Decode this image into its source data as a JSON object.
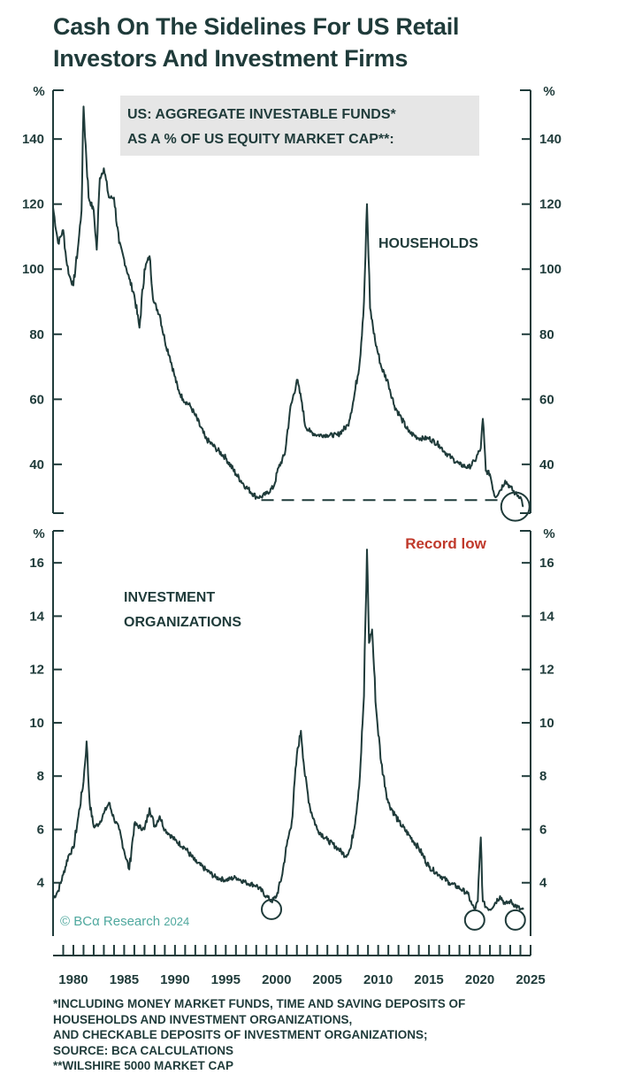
{
  "title": {
    "line1": "Cash On The Sidelines For US Retail",
    "line2": "Investors And Investment Firms"
  },
  "footnotes": [
    "*INCLUDING MONEY MARKET FUNDS, TIME AND SAVING DEPOSITS OF",
    "HOUSEHOLDS AND INVESTMENT ORGANIZATIONS,",
    "AND CHECKABLE DEPOSITS OF INVESTMENT ORGANIZATIONS;",
    "SOURCE: BCA CALCULATIONS",
    "**WILSHIRE 5000 MARKET CAP"
  ],
  "watermark": {
    "prefix": "© BC",
    "alpha": "α",
    "brand": " Research ",
    "year": "2024"
  },
  "colors": {
    "line": "#1f3b3a",
    "accent": "#c0392b",
    "label_box": "#e6e6e6",
    "watermark": "#4fa89e"
  },
  "chart_data": [
    {
      "type": "line",
      "box_label": [
        "US: AGGREGATE INVESTABLE FUNDS*",
        "AS A % OF US EQUITY MARKET CAP**:"
      ],
      "series_label": "HOUSEHOLDS",
      "annotation": "Record low",
      "unit_label": "%",
      "ylim": [
        25,
        155
      ],
      "yticks": [
        "140",
        "120",
        "100",
        "80",
        "60",
        "40"
      ],
      "ytick_values": [
        140,
        120,
        100,
        80,
        60,
        40
      ],
      "xlim": [
        1978,
        2025
      ],
      "reference_line_value": 29,
      "reference_line_x": [
        1998.5,
        2022
      ],
      "circle_markers": [
        {
          "x": 2023.5,
          "y": 27
        }
      ],
      "x": [
        1978,
        1978.5,
        1979,
        1979.3,
        1979.6,
        1980,
        1980.5,
        1980.8,
        1981,
        1981.5,
        1982,
        1982.3,
        1982.6,
        1983,
        1983.5,
        1984,
        1984.5,
        1985,
        1985.5,
        1986,
        1986.5,
        1987,
        1987.5,
        1987.9,
        1988.5,
        1989,
        1989.5,
        1989.9,
        1990.3,
        1990.8,
        1991.5,
        1992,
        1993,
        1994,
        1995,
        1996,
        1997,
        1998,
        1998.5,
        1999,
        1999.7,
        2000.2,
        2000.8,
        2001.3,
        2002,
        2002.5,
        2002.8,
        2003.3,
        2004,
        2005,
        2006,
        2007,
        2007.6,
        2008.2,
        2008.6,
        2008.9,
        2009.2,
        2009.7,
        2010.3,
        2011,
        2011.6,
        2012.3,
        2013,
        2014,
        2015,
        2016,
        2016.5,
        2017.2,
        2018,
        2018.9,
        2019.5,
        2020.1,
        2020.3,
        2020.6,
        2021,
        2021.5,
        2022,
        2022.5,
        2023,
        2023.5,
        2024,
        2024.3
      ],
      "y": [
        119,
        108,
        112,
        103,
        98,
        95,
        108,
        118,
        150,
        122,
        118,
        106,
        128,
        131,
        122,
        122,
        108,
        103,
        97,
        92,
        82,
        100,
        104,
        90,
        86,
        78,
        73,
        68,
        63,
        60,
        58,
        55,
        48,
        45,
        42,
        37,
        33,
        30,
        30,
        31,
        33,
        39,
        43,
        56,
        66,
        59,
        52,
        50,
        49,
        49,
        49,
        52,
        60,
        72,
        90,
        120,
        88,
        78,
        70,
        65,
        58,
        54,
        50,
        48,
        48,
        46,
        44,
        42,
        40,
        39,
        41,
        45,
        54,
        38,
        37,
        30,
        32,
        35,
        33,
        31,
        30,
        27
      ]
    },
    {
      "type": "line",
      "series_label": [
        "INVESTMENT",
        "ORGANIZATIONS"
      ],
      "unit_label": "%",
      "ylim": [
        2,
        17.2
      ],
      "yticks": [
        "16",
        "14",
        "12",
        "10",
        "8",
        "6",
        "4"
      ],
      "ytick_values": [
        16,
        14,
        12,
        10,
        8,
        6,
        4
      ],
      "xlim": [
        1978,
        2025
      ],
      "circle_markers": [
        {
          "x": 1999.5,
          "y": 3.0
        },
        {
          "x": 2019.5,
          "y": 2.6
        },
        {
          "x": 2023.5,
          "y": 2.6
        }
      ],
      "x": [
        1978,
        1978.5,
        1979,
        1979.5,
        1980,
        1980.5,
        1981,
        1981.3,
        1981.6,
        1982,
        1982.5,
        1983,
        1983.5,
        1984,
        1984.5,
        1985,
        1985.5,
        1986,
        1987,
        1987.5,
        1988,
        1988.5,
        1989,
        1989.5,
        1990,
        1991,
        1992,
        1993,
        1994,
        1995,
        1996,
        1997,
        1998,
        1999,
        1999.5,
        2000,
        2000.5,
        2001,
        2001.5,
        2002,
        2002.4,
        2002.8,
        2003.3,
        2004,
        2005,
        2006,
        2006.8,
        2007.3,
        2007.8,
        2008.2,
        2008.6,
        2008.9,
        2009.1,
        2009.4,
        2009.8,
        2010.3,
        2011,
        2012,
        2013,
        2014,
        2015,
        2016,
        2017,
        2018,
        2018.8,
        2019.2,
        2019.5,
        2019.8,
        2020.1,
        2020.3,
        2020.6,
        2021,
        2022,
        2022.5,
        2023,
        2024,
        2024.3
      ],
      "y": [
        3.4,
        3.7,
        4.3,
        5.0,
        5.3,
        6.5,
        7.8,
        9.3,
        7.0,
        6.1,
        6.2,
        6.6,
        7.0,
        6.4,
        6.0,
        5.2,
        4.5,
        6.2,
        6.0,
        6.8,
        6.1,
        6.5,
        6.0,
        5.8,
        5.6,
        5.3,
        4.8,
        4.5,
        4.2,
        4.1,
        4.2,
        4.0,
        3.9,
        3.5,
        3.3,
        3.5,
        4.2,
        5.4,
        6.3,
        8.8,
        9.7,
        8.0,
        6.8,
        6.0,
        5.6,
        5.3,
        5.0,
        5.3,
        6.5,
        8.0,
        11.0,
        16.5,
        13.0,
        13.5,
        10.5,
        8.5,
        7.0,
        6.3,
        5.8,
        5.3,
        4.6,
        4.3,
        4.0,
        3.8,
        3.6,
        3.2,
        3.0,
        3.3,
        5.7,
        3.3,
        3.1,
        3.0,
        3.5,
        3.2,
        3.3,
        3.0,
        3.0
      ]
    }
  ],
  "x_axis": {
    "tick_labels": [
      "1980",
      "1985",
      "1990",
      "1995",
      "2000",
      "2005",
      "2010",
      "2015",
      "2020",
      "2025"
    ],
    "tick_values": [
      1980,
      1985,
      1990,
      1995,
      2000,
      2005,
      2010,
      2015,
      2020,
      2025
    ]
  }
}
